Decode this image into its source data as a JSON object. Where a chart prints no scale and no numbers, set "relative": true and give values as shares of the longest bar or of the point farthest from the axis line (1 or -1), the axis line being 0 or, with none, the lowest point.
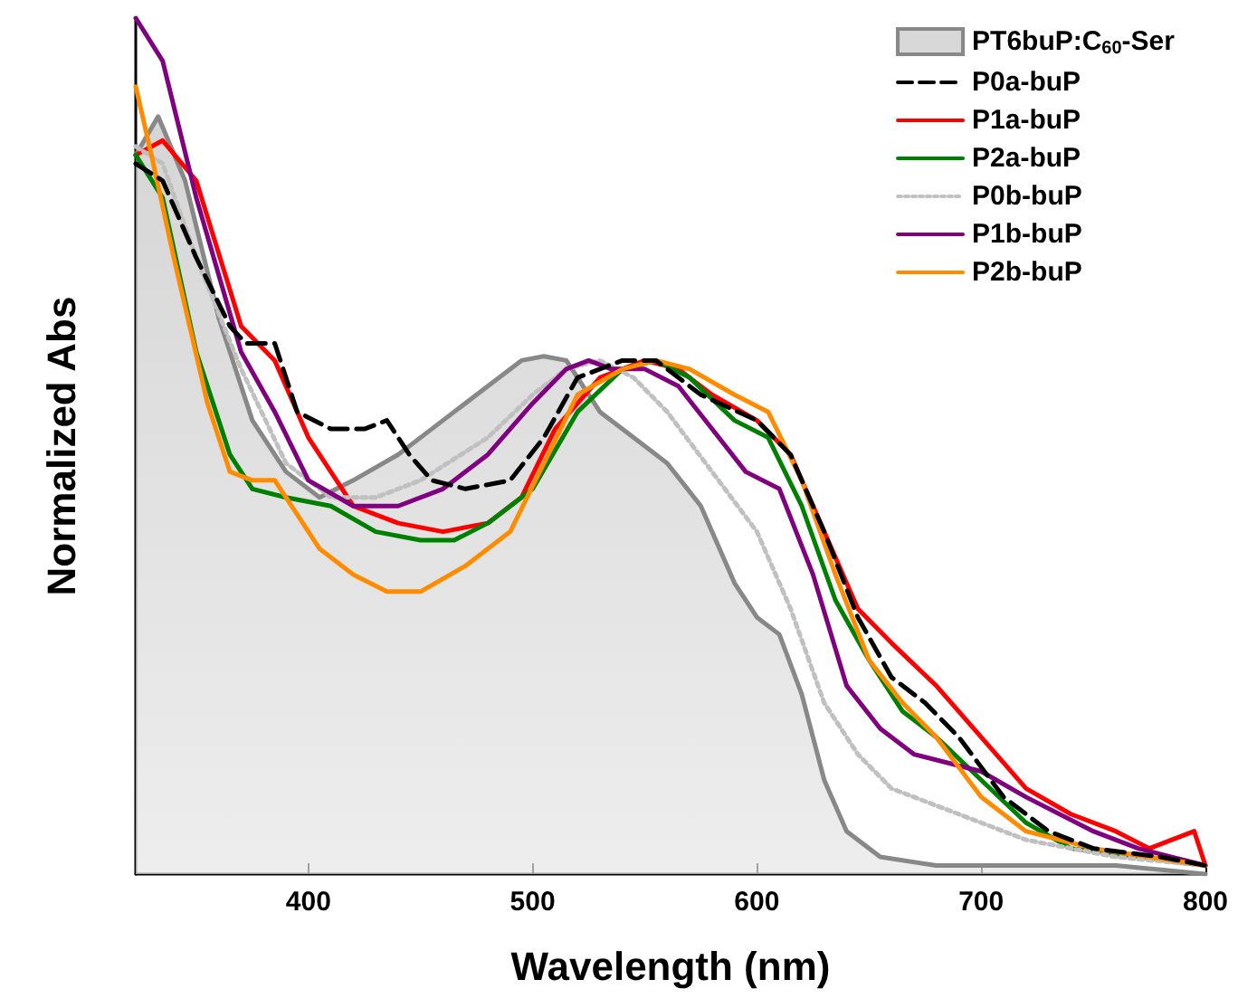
{
  "chart_data": {
    "type": "line",
    "relative": true,
    "xlabel": "Wavelength (nm)",
    "ylabel": "Normalized Abs",
    "xlim": [
      323,
      800
    ],
    "xticks": [
      400,
      500,
      600,
      700,
      800
    ],
    "grid": false,
    "legend": "top right",
    "marker": "none",
    "series": [
      {
        "name": "PT6buP:C$_{60}$-Ser",
        "type": "area",
        "color": "#888888",
        "x": [
          323,
          333,
          345,
          360,
          375,
          390,
          405,
          420,
          440,
          460,
          480,
          495,
          505,
          515,
          530,
          545,
          560,
          575,
          590,
          600,
          610,
          620,
          630,
          640,
          655,
          680,
          720,
          760,
          800
        ],
        "values": [
          0.84,
          0.885,
          0.81,
          0.65,
          0.53,
          0.47,
          0.44,
          0.46,
          0.49,
          0.53,
          0.57,
          0.6,
          0.605,
          0.6,
          0.54,
          0.51,
          0.48,
          0.43,
          0.34,
          0.3,
          0.28,
          0.21,
          0.11,
          0.05,
          0.02,
          0.01,
          0.01,
          0.01,
          0.0
        ]
      },
      {
        "name": "P0a-buP",
        "color": "#000000",
        "line_style": "dashed",
        "x": [
          323,
          335,
          350,
          365,
          372,
          385,
          395,
          410,
          425,
          435,
          445,
          455,
          470,
          490,
          505,
          520,
          540,
          555,
          575,
          600,
          615,
          630,
          645,
          660,
          675,
          690,
          710,
          730,
          750,
          780,
          800
        ],
        "values": [
          0.83,
          0.81,
          0.72,
          0.64,
          0.62,
          0.62,
          0.54,
          0.52,
          0.52,
          0.53,
          0.49,
          0.46,
          0.45,
          0.46,
          0.51,
          0.58,
          0.6,
          0.6,
          0.56,
          0.53,
          0.49,
          0.4,
          0.3,
          0.23,
          0.2,
          0.16,
          0.09,
          0.05,
          0.03,
          0.02,
          0.01
        ]
      },
      {
        "name": "P1a-buP",
        "color": "#ff0000",
        "x": [
          323,
          335,
          350,
          370,
          385,
          400,
          420,
          440,
          460,
          480,
          495,
          510,
          530,
          550,
          565,
          580,
          600,
          615,
          630,
          645,
          660,
          680,
          700,
          720,
          740,
          760,
          775,
          785,
          795,
          800
        ],
        "values": [
          0.84,
          0.857,
          0.81,
          0.64,
          0.6,
          0.51,
          0.43,
          0.41,
          0.4,
          0.41,
          0.44,
          0.52,
          0.58,
          0.6,
          0.59,
          0.56,
          0.53,
          0.49,
          0.4,
          0.31,
          0.27,
          0.22,
          0.16,
          0.1,
          0.07,
          0.05,
          0.03,
          0.04,
          0.05,
          0.01
        ]
      },
      {
        "name": "P2a-buP",
        "color": "#008000",
        "x": [
          323,
          335,
          350,
          365,
          375,
          390,
          410,
          430,
          450,
          465,
          480,
          500,
          520,
          540,
          555,
          570,
          590,
          605,
          620,
          635,
          650,
          665,
          680,
          700,
          720,
          740,
          770,
          800
        ],
        "values": [
          0.84,
          0.79,
          0.61,
          0.49,
          0.45,
          0.44,
          0.43,
          0.4,
          0.39,
          0.39,
          0.41,
          0.45,
          0.54,
          0.59,
          0.6,
          0.58,
          0.53,
          0.51,
          0.43,
          0.32,
          0.25,
          0.19,
          0.16,
          0.11,
          0.06,
          0.03,
          0.02,
          0.01
        ]
      },
      {
        "name": "P0b-buP",
        "color": "#c0c0c0",
        "line_style": "dotted",
        "x": [
          323,
          335,
          350,
          370,
          390,
          410,
          430,
          450,
          480,
          500,
          515,
          530,
          545,
          560,
          580,
          600,
          615,
          630,
          645,
          660,
          690,
          720,
          760,
          800
        ],
        "values": [
          0.85,
          0.83,
          0.72,
          0.59,
          0.48,
          0.44,
          0.44,
          0.46,
          0.51,
          0.56,
          0.59,
          0.6,
          0.58,
          0.54,
          0.47,
          0.4,
          0.31,
          0.2,
          0.14,
          0.1,
          0.07,
          0.04,
          0.02,
          0.01
        ]
      },
      {
        "name": "P1b-buP",
        "color": "#800080",
        "x": [
          323,
          335,
          350,
          370,
          385,
          400,
          420,
          440,
          460,
          480,
          500,
          515,
          525,
          535,
          550,
          565,
          580,
          595,
          610,
          625,
          640,
          655,
          670,
          700,
          720,
          750,
          770,
          785,
          800
        ],
        "values": [
          1.0,
          0.95,
          0.79,
          0.61,
          0.54,
          0.46,
          0.43,
          0.43,
          0.45,
          0.49,
          0.55,
          0.59,
          0.6,
          0.59,
          0.59,
          0.57,
          0.52,
          0.47,
          0.45,
          0.35,
          0.22,
          0.17,
          0.14,
          0.12,
          0.09,
          0.05,
          0.03,
          0.02,
          0.01
        ]
      },
      {
        "name": "P2b-buP",
        "color": "#ff8c00",
        "x": [
          323,
          330,
          340,
          355,
          365,
          375,
          385,
          395,
          405,
          420,
          435,
          450,
          470,
          490,
          505,
          520,
          540,
          555,
          570,
          590,
          605,
          620,
          635,
          650,
          665,
          680,
          700,
          720,
          750,
          800
        ],
        "values": [
          0.92,
          0.84,
          0.72,
          0.55,
          0.47,
          0.46,
          0.46,
          0.42,
          0.38,
          0.35,
          0.33,
          0.33,
          0.36,
          0.4,
          0.48,
          0.56,
          0.59,
          0.6,
          0.59,
          0.56,
          0.54,
          0.46,
          0.35,
          0.25,
          0.2,
          0.16,
          0.09,
          0.05,
          0.03,
          0.01
        ]
      }
    ]
  }
}
